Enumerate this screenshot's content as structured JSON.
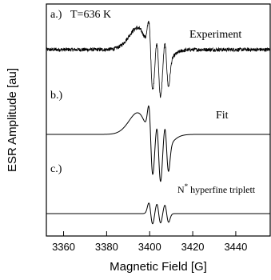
{
  "chart_data": {
    "type": "line",
    "xlabel": "Magnetic Field [G]",
    "ylabel": "ESR Amplitude [au]",
    "xlim": [
      3352,
      3456
    ],
    "x_ticks": [
      3360,
      3380,
      3400,
      3420,
      3440
    ],
    "x_tick_labels": [
      "3360",
      "3380",
      "3400",
      "3420",
      "3440"
    ],
    "grid": false,
    "y_ticks_shown": false,
    "panels": [
      {
        "label": "a.)",
        "annotation": "T=636 K",
        "series_label": "Experiment",
        "baseline_offset": 2.0,
        "noisy": true,
        "broad": {
          "center": 3399.5,
          "width": 5.2,
          "amplitude": 0.45
        },
        "triplet": {
          "positions": [
            3400.5,
            3404.2,
            3407.9
          ],
          "width": 0.9,
          "amplitudes": [
            0.6,
            0.55,
            0.5
          ]
        }
      },
      {
        "label": "b.)",
        "series_label": "Fit",
        "baseline_offset": 1.0,
        "noisy": false,
        "broad": {
          "center": 3399.5,
          "width": 5.2,
          "amplitude": 0.45
        },
        "triplet": {
          "positions": [
            3400.5,
            3404.2,
            3407.9
          ],
          "width": 0.9,
          "amplitudes": [
            0.6,
            0.55,
            0.5
          ]
        }
      },
      {
        "label": "c.)",
        "series_label": "N* hyperfine triplett",
        "series_label_main": "N",
        "series_label_sup": "*",
        "series_label_rest": " hyperfine triplett",
        "baseline_offset": 0.0,
        "noisy": false,
        "broad": {
          "center": 3399.5,
          "width": 5.2,
          "amplitude": 0.0
        },
        "triplet": {
          "positions": [
            3400.5,
            3404.2,
            3407.9
          ],
          "width": 0.9,
          "amplitudes": [
            0.22,
            0.2,
            0.18
          ]
        }
      }
    ]
  }
}
